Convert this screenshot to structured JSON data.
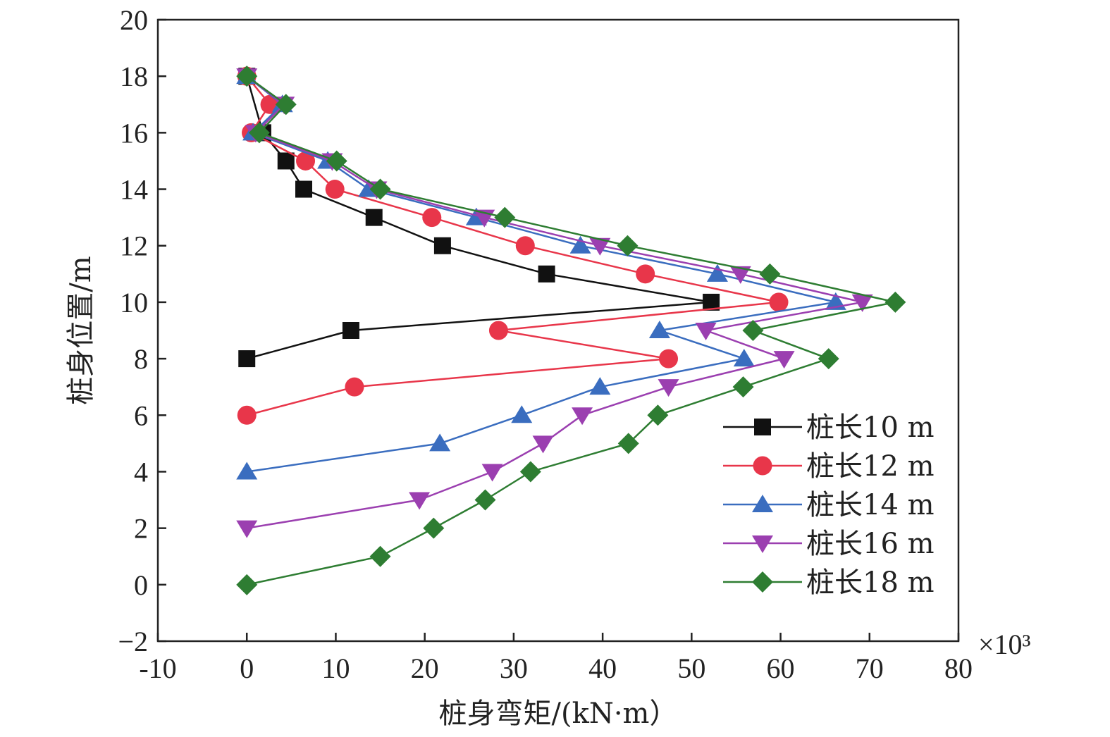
{
  "chart_data": {
    "type": "line",
    "title": "",
    "xlabel": "桩身弯矩/(kN·m）",
    "ylabel": "桩身位置/m",
    "x_multiplier": "×10³",
    "xlim": [
      -10,
      80
    ],
    "ylim": [
      -2,
      20
    ],
    "xticks": [
      -10,
      0,
      10,
      20,
      30,
      40,
      50,
      60,
      70,
      80
    ],
    "yticks": [
      -2,
      0,
      2,
      4,
      6,
      8,
      10,
      12,
      14,
      16,
      18,
      20
    ],
    "grid": false,
    "legend_position": "right",
    "series": [
      {
        "name": "桩长10 m",
        "color": "#111111",
        "marker": "square",
        "x": [
          0,
          1.8,
          4.4,
          6.4,
          14.3,
          22.0,
          33.7,
          52.2,
          11.7,
          0
        ],
        "y": [
          18,
          16,
          15,
          14,
          13,
          12,
          11,
          10,
          9,
          8
        ]
      },
      {
        "name": "桩长12 m",
        "color": "#e8364a",
        "marker": "circle",
        "x": [
          0,
          2.6,
          0.5,
          6.6,
          9.9,
          20.8,
          31.3,
          44.8,
          59.8,
          28.3,
          47.4,
          12.1,
          0
        ],
        "y": [
          18,
          17,
          16,
          15,
          14,
          13,
          12,
          11,
          10,
          9,
          8,
          7,
          6
        ]
      },
      {
        "name": "桩长14 m",
        "color": "#3a6dbf",
        "marker": "triangle-up",
        "x": [
          0,
          4.0,
          0.7,
          9.1,
          13.7,
          25.8,
          37.5,
          52.9,
          66.2,
          46.4,
          55.9,
          39.7,
          30.9,
          21.7,
          0
        ],
        "y": [
          18,
          17,
          16,
          15,
          14,
          13,
          12,
          11,
          10,
          9,
          8,
          7,
          6,
          5,
          4
        ]
      },
      {
        "name": "桩长16 m",
        "color": "#9b3fb0",
        "marker": "triangle-down",
        "x": [
          0,
          4.2,
          1.0,
          9.6,
          14.6,
          26.7,
          39.7,
          55.5,
          69.2,
          51.6,
          60.4,
          47.4,
          37.7,
          33.3,
          27.6,
          19.4,
          0
        ],
        "y": [
          18,
          17,
          16,
          15,
          14,
          13,
          12,
          11,
          10,
          9,
          8,
          7,
          6,
          5,
          4,
          3,
          2
        ]
      },
      {
        "name": "桩长18 m",
        "color": "#2e7d32",
        "marker": "diamond",
        "x": [
          0,
          4.4,
          1.4,
          10.1,
          15.0,
          29.0,
          42.8,
          58.8,
          72.9,
          56.9,
          65.4,
          55.8,
          46.2,
          42.9,
          31.9,
          26.8,
          21.0,
          15.0,
          0
        ],
        "y": [
          18,
          17,
          16,
          15,
          14,
          13,
          12,
          11,
          10,
          9,
          8,
          7,
          6,
          5,
          4,
          3,
          2,
          1,
          0
        ]
      }
    ]
  }
}
